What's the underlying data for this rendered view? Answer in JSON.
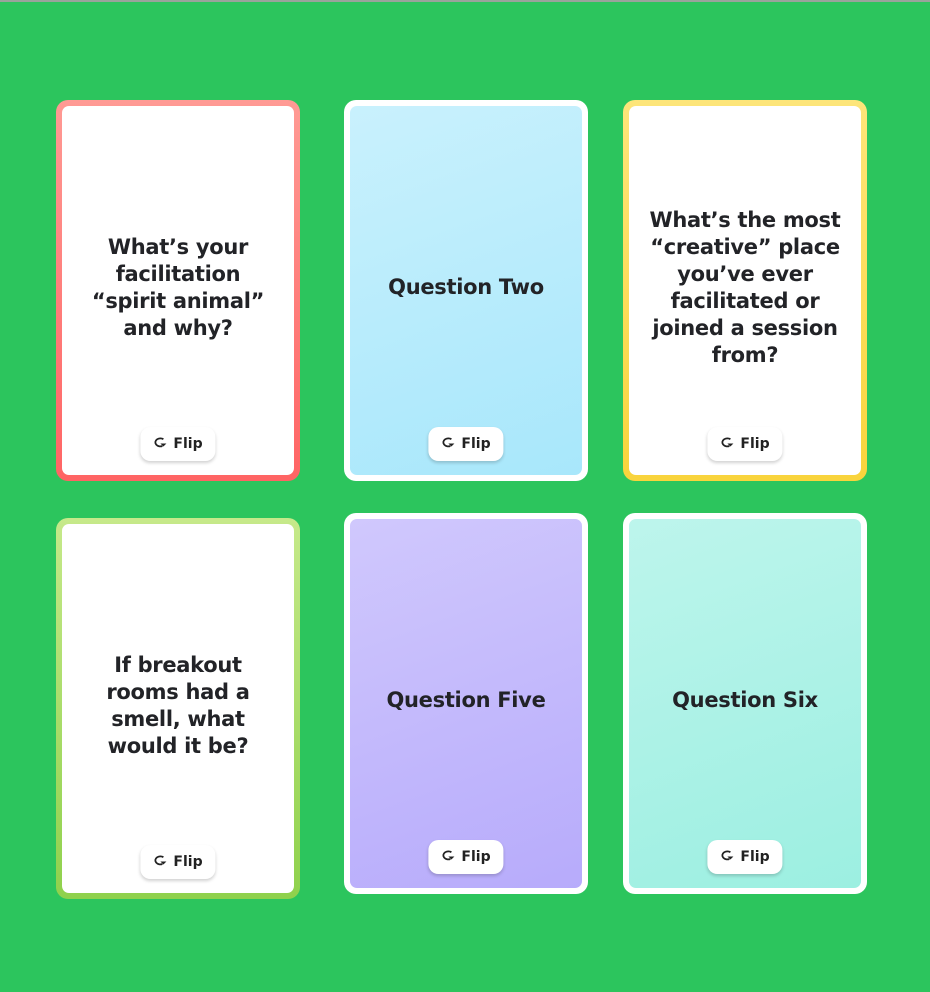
{
  "flip_label": "Flip",
  "cards": [
    {
      "text": "What’s your facilitation “spirit animal” and why?",
      "state": "flipped",
      "accent": "#ff7070"
    },
    {
      "text": "Question Two",
      "state": "front",
      "accent": "#b2e9fb"
    },
    {
      "text": "What’s the most “creative” place you’ve ever facilitated or joined a session from?",
      "state": "flipped",
      "accent": "#fbd94c"
    },
    {
      "text": "If breakout rooms had a smell, what would it be?",
      "state": "flipped",
      "accent": "#9ed45a"
    },
    {
      "text": "Question Five",
      "state": "front",
      "accent": "#bdb0fc"
    },
    {
      "text": "Question Six",
      "state": "front",
      "accent": "#a6f0e4"
    }
  ]
}
